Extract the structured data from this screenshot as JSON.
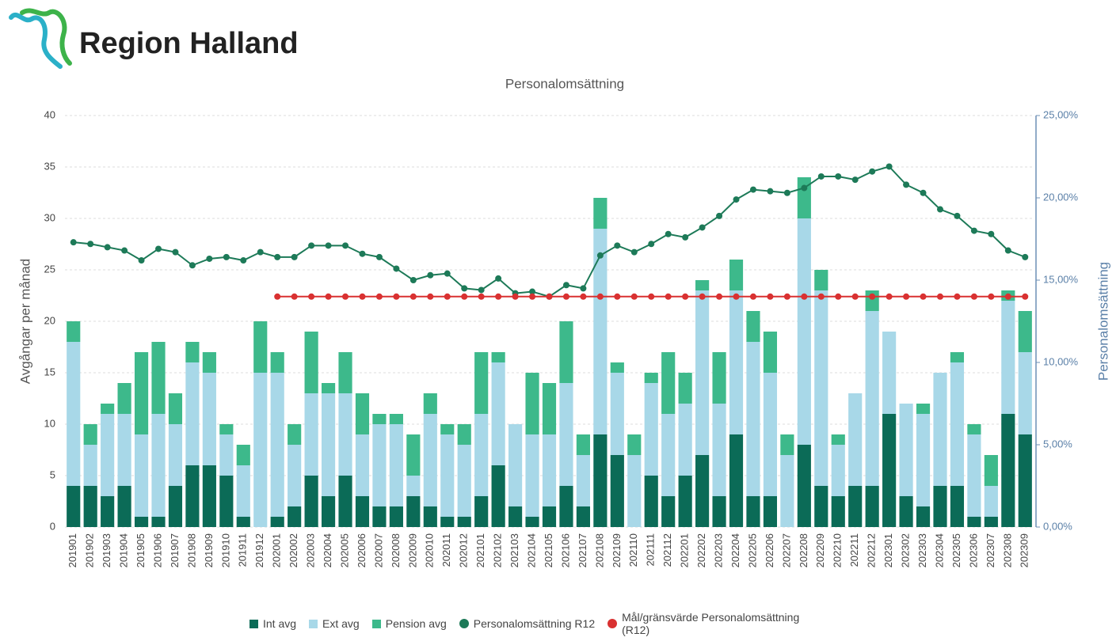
{
  "header": {
    "brand": "Region Halland"
  },
  "chart_data": {
    "type": "bar",
    "title": "Personalomsättning",
    "y_label": "Avgångar per månad",
    "y2_label": "Personalomsättning",
    "categories": [
      "201901",
      "201902",
      "201903",
      "201904",
      "201905",
      "201906",
      "201907",
      "201908",
      "201909",
      "201910",
      "201911",
      "201912",
      "202001",
      "202002",
      "202003",
      "202004",
      "202005",
      "202006",
      "202007",
      "202008",
      "202009",
      "202010",
      "202011",
      "202012",
      "202101",
      "202102",
      "202103",
      "202104",
      "202105",
      "202106",
      "202107",
      "202108",
      "202109",
      "202110",
      "202111",
      "202112",
      "202201",
      "202202",
      "202203",
      "202204",
      "202205",
      "202206",
      "202207",
      "202208",
      "202209",
      "202210",
      "202211",
      "202212",
      "202301",
      "202302",
      "202303",
      "202304",
      "202305",
      "202306",
      "202307",
      "202308",
      "202309"
    ],
    "stacked": true,
    "grid": true,
    "ylim": [
      0,
      40
    ],
    "yticks": [
      0,
      5,
      10,
      15,
      20,
      25,
      30,
      35,
      40
    ],
    "y2lim": [
      0,
      25
    ],
    "y2ticks": [
      {
        "value": 0,
        "label": "0,00%"
      },
      {
        "value": 5,
        "label": "5,00%"
      },
      {
        "value": 10,
        "label": "10,00%"
      },
      {
        "value": 15,
        "label": "15,00%"
      },
      {
        "value": 20,
        "label": "20,00%"
      },
      {
        "value": 25,
        "label": "25,00%"
      }
    ],
    "series": [
      {
        "name": "Int avg",
        "type": "bar",
        "color": "#0b6b57",
        "values": [
          4,
          4,
          3,
          4,
          1,
          1,
          4,
          6,
          6,
          5,
          1,
          0,
          1,
          2,
          5,
          3,
          5,
          3,
          2,
          2,
          3,
          2,
          1,
          1,
          3,
          6,
          2,
          1,
          2,
          4,
          2,
          9,
          7,
          0,
          5,
          3,
          5,
          7,
          3,
          9,
          3,
          3,
          0,
          8,
          4,
          3,
          4,
          4,
          11,
          3,
          2,
          4,
          4,
          1,
          1,
          11,
          9
        ]
      },
      {
        "name": "Ext avg",
        "type": "bar",
        "color": "#a8d8e8",
        "values": [
          14,
          4,
          8,
          7,
          8,
          10,
          6,
          10,
          9,
          4,
          5,
          15,
          14,
          6,
          8,
          10,
          8,
          6,
          8,
          8,
          2,
          9,
          8,
          7,
          8,
          10,
          8,
          8,
          7,
          10,
          5,
          20,
          8,
          7,
          9,
          8,
          7,
          16,
          9,
          14,
          15,
          12,
          7,
          22,
          19,
          5,
          9,
          17,
          8,
          9,
          9,
          11,
          12,
          8,
          3,
          11,
          8
        ]
      },
      {
        "name": "Pension avg",
        "type": "bar",
        "color": "#3db98b",
        "values": [
          2,
          2,
          1,
          3,
          8,
          7,
          3,
          2,
          2,
          1,
          2,
          5,
          2,
          2,
          6,
          1,
          4,
          4,
          1,
          1,
          4,
          2,
          1,
          2,
          6,
          1,
          0,
          6,
          5,
          6,
          2,
          3,
          1,
          2,
          1,
          6,
          3,
          1,
          5,
          3,
          3,
          4,
          2,
          4,
          2,
          1,
          0,
          2,
          0,
          0,
          1,
          0,
          1,
          1,
          3,
          1,
          4
        ]
      },
      {
        "name": "Personalomsättning R12",
        "type": "line",
        "axis": "y2",
        "color": "#1d7a58",
        "values": [
          17.3,
          17.2,
          17.0,
          16.8,
          16.2,
          16.9,
          16.7,
          15.9,
          16.3,
          16.4,
          16.2,
          16.7,
          16.4,
          16.4,
          17.1,
          17.1,
          17.1,
          16.6,
          16.4,
          15.7,
          15.0,
          15.3,
          15.4,
          14.5,
          14.4,
          15.1,
          14.2,
          14.3,
          14.0,
          14.7,
          14.5,
          16.5,
          17.1,
          16.7,
          17.2,
          17.8,
          17.6,
          18.2,
          18.9,
          19.9,
          20.5,
          20.4,
          20.3,
          20.6,
          21.3,
          21.3,
          21.1,
          21.6,
          21.9,
          20.8,
          20.3,
          19.3,
          18.9,
          18.0,
          17.8,
          16.8,
          16.4
        ]
      },
      {
        "name": "Mål/gränsvärde Personalomsättning (R12)",
        "type": "line",
        "axis": "y2",
        "color": "#d93131",
        "values": [
          null,
          null,
          null,
          null,
          null,
          null,
          null,
          null,
          null,
          null,
          null,
          null,
          14,
          14,
          14,
          14,
          14,
          14,
          14,
          14,
          14,
          14,
          14,
          14,
          14,
          14,
          14,
          14,
          14,
          14,
          14,
          14,
          14,
          14,
          14,
          14,
          14,
          14,
          14,
          14,
          14,
          14,
          14,
          14,
          14,
          14,
          14,
          14,
          14,
          14,
          14,
          14,
          14,
          14,
          14,
          14,
          14
        ]
      }
    ]
  }
}
